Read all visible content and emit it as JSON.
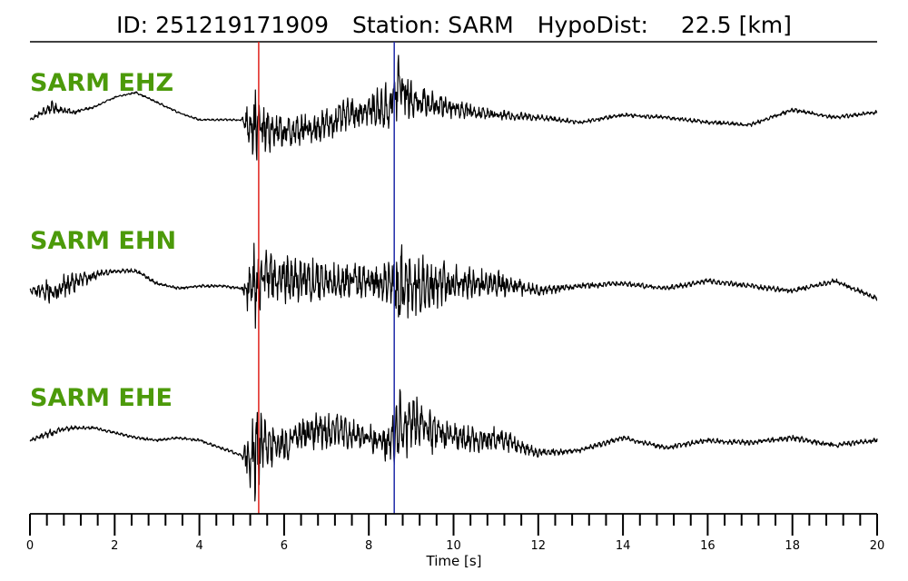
{
  "header": {
    "id_label": "ID:",
    "id_value": "251219171909",
    "station_label": "Station:",
    "station_value": "SARM",
    "hypodist_label": "HypoDist:",
    "hypodist_value": "22.5",
    "hypodist_unit": "[km]"
  },
  "colors": {
    "channel_label": "#4c9a0a",
    "trace": "#000000",
    "p_pick": "#e0201b",
    "s_pick": "#1f2aa8",
    "axis": "#000000"
  },
  "chart_data": {
    "type": "line",
    "title": "ID: 251219171909   Station: SARM   HypoDist:    22.5 [km]",
    "xlabel": "Time [s]",
    "ylabel": "",
    "xlim": [
      0,
      20
    ],
    "major_ticks": [
      0,
      2,
      4,
      6,
      8,
      10,
      12,
      14,
      16,
      18,
      20
    ],
    "tick_labels": [
      "0",
      "2",
      "4",
      "6",
      "8",
      "10",
      "12",
      "14",
      "16",
      "18",
      "20"
    ],
    "minor_tick_step": 0.4,
    "grid": false,
    "picks": [
      {
        "phase": "P",
        "time": 5.4,
        "color": "#e0201b"
      },
      {
        "phase": "S",
        "time": 8.6,
        "color": "#1f2aa8"
      }
    ],
    "series": [
      {
        "name": "SARM EHZ",
        "x": [
          0,
          0.5,
          1.0,
          1.5,
          2.0,
          2.5,
          3.0,
          3.5,
          4.0,
          4.5,
          5.0,
          5.3,
          5.5,
          6.0,
          6.5,
          7.0,
          7.5,
          8.0,
          8.5,
          8.7,
          9.0,
          9.5,
          10,
          10.5,
          11,
          12,
          13,
          14,
          15,
          16,
          17,
          18,
          19,
          20
        ],
        "values": [
          0.0,
          0.25,
          0.15,
          0.25,
          0.45,
          0.55,
          0.35,
          0.15,
          0.0,
          0.0,
          0.0,
          -0.1,
          -0.2,
          -0.25,
          -0.2,
          -0.1,
          0.1,
          0.2,
          0.25,
          0.7,
          0.4,
          0.3,
          0.25,
          0.15,
          0.1,
          0.05,
          -0.05,
          0.1,
          0.05,
          -0.05,
          -0.1,
          0.2,
          0.05,
          0.15
        ],
        "noise": [
          0.02,
          0.12,
          0.05,
          0.02,
          0.02,
          0.02,
          0.02,
          0.02,
          0.02,
          0.02,
          0.02,
          0.75,
          0.45,
          0.3,
          0.3,
          0.32,
          0.3,
          0.28,
          0.5,
          0.7,
          0.35,
          0.25,
          0.2,
          0.15,
          0.1,
          0.06,
          0.04,
          0.04,
          0.04,
          0.04,
          0.04,
          0.04,
          0.04,
          0.04
        ]
      },
      {
        "name": "SARM EHN",
        "x": [
          0,
          0.5,
          1.0,
          1.5,
          2.0,
          2.5,
          3.0,
          3.5,
          4.0,
          4.5,
          5.0,
          5.3,
          5.5,
          6.0,
          6.5,
          7.0,
          7.5,
          8.0,
          8.5,
          8.7,
          9.0,
          9.5,
          10,
          10.5,
          11,
          12,
          13,
          14,
          15,
          16,
          17,
          18,
          19,
          20
        ],
        "values": [
          -0.1,
          -0.1,
          0.05,
          0.2,
          0.3,
          0.3,
          0.05,
          -0.05,
          0.0,
          0.0,
          -0.05,
          0.0,
          0.15,
          0.15,
          0.1,
          0.05,
          0.1,
          0.1,
          0.0,
          -0.1,
          0.0,
          0.1,
          0.05,
          0.05,
          0.05,
          -0.1,
          0.0,
          0.05,
          -0.05,
          0.1,
          0.0,
          -0.1,
          0.1,
          -0.25
        ],
        "noise": [
          0.05,
          0.3,
          0.2,
          0.1,
          0.04,
          0.04,
          0.04,
          0.03,
          0.03,
          0.03,
          0.03,
          0.9,
          0.55,
          0.45,
          0.45,
          0.4,
          0.35,
          0.3,
          0.45,
          0.85,
          0.7,
          0.5,
          0.35,
          0.3,
          0.25,
          0.1,
          0.06,
          0.05,
          0.05,
          0.05,
          0.05,
          0.05,
          0.05,
          0.05
        ]
      },
      {
        "name": "SARM EHE",
        "x": [
          0,
          0.5,
          1.0,
          1.5,
          2.0,
          2.5,
          3.0,
          3.5,
          4.0,
          4.5,
          5.0,
          5.3,
          5.5,
          6.0,
          6.5,
          7.0,
          7.5,
          8.0,
          8.5,
          8.7,
          9.0,
          9.5,
          10,
          10.5,
          11,
          12,
          13,
          14,
          15,
          16,
          17,
          18,
          19,
          20
        ],
        "values": [
          0.0,
          0.15,
          0.25,
          0.25,
          0.15,
          0.05,
          0.0,
          0.05,
          0.0,
          -0.15,
          -0.3,
          -0.35,
          0.0,
          -0.1,
          0.15,
          0.2,
          0.15,
          0.05,
          -0.05,
          0.3,
          0.4,
          0.15,
          0.05,
          0.0,
          0.05,
          -0.25,
          -0.2,
          0.05,
          -0.15,
          0.0,
          -0.05,
          0.05,
          -0.1,
          0.0
        ],
        "noise": [
          0.03,
          0.08,
          0.04,
          0.03,
          0.03,
          0.03,
          0.03,
          0.03,
          0.03,
          0.03,
          0.03,
          0.9,
          0.5,
          0.4,
          0.35,
          0.35,
          0.3,
          0.25,
          0.4,
          0.75,
          0.6,
          0.4,
          0.3,
          0.25,
          0.25,
          0.08,
          0.05,
          0.05,
          0.05,
          0.05,
          0.05,
          0.06,
          0.05,
          0.05
        ]
      }
    ]
  }
}
